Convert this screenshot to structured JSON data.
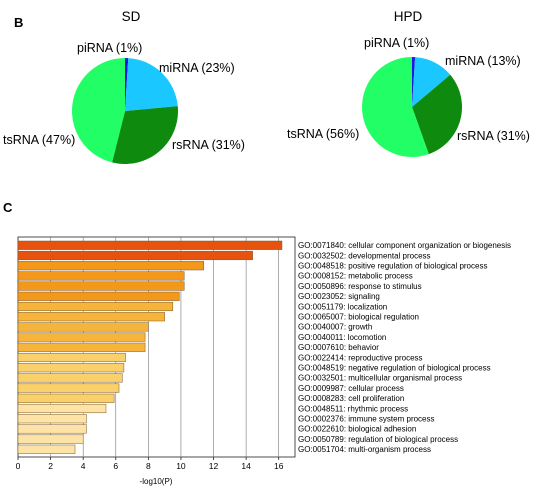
{
  "panel_b_letter": "B",
  "panel_c_letter": "C",
  "colors": {
    "piRNA": "#1a1ae6",
    "miRNA": "#1ac8ff",
    "rsRNA": "#0e8a0e",
    "tsRNA": "#22ff66",
    "bar_palette": [
      "#e8520f",
      "#ef7a1a",
      "#f4981c",
      "#f7b43a",
      "#fad06a",
      "#fde3a6"
    ]
  },
  "chart_data": [
    {
      "type": "pie",
      "title": "SD",
      "slices": [
        {
          "name": "piRNA",
          "label": "piRNA (1%)",
          "value": 1
        },
        {
          "name": "miRNA",
          "label": "miRNA (23%)",
          "value": 23
        },
        {
          "name": "rsRNA",
          "label": "rsRNA (31%)",
          "value": 31
        },
        {
          "name": "tsRNA",
          "label": "tsRNA (47%)",
          "value": 47
        }
      ]
    },
    {
      "type": "pie",
      "title": "HPD",
      "slices": [
        {
          "name": "piRNA",
          "label": "piRNA (1%)",
          "value": 1
        },
        {
          "name": "miRNA",
          "label": "miRNA (13%)",
          "value": 13
        },
        {
          "name": "rsRNA",
          "label": "rsRNA (31%)",
          "value": 31
        },
        {
          "name": "tsRNA",
          "label": "tsRNA (56%)",
          "value": 56
        }
      ]
    },
    {
      "type": "bar",
      "orientation": "horizontal",
      "xlabel": "-log10(P)",
      "xlim": [
        0,
        17
      ],
      "xticks": [
        0,
        2,
        4,
        6,
        8,
        10,
        12,
        14,
        16
      ],
      "grid": true,
      "categories": [
        "GO:0071840: cellular component organization or biogenesis",
        "GO:0032502: developmental process",
        "GO:0048518: positive regulation of biological process",
        "GO:0008152: metabolic process",
        "GO:0050896: response to stimulus",
        "GO:0023052: signaling",
        "GO:0051179: localization",
        "GO:0065007: biological regulation",
        "GO:0040007: growth",
        "GO:0040011: locomotion",
        "GO:0007610: behavior",
        "GO:0022414: reproductive process",
        "GO:0048519: negative regulation of biological process",
        "GO:0032501: multicellular organismal process",
        "GO:0009987: cellular process",
        "GO:0008283: cell proliferation",
        "GO:0048511: rhythmic process",
        "GO:0002376: immune system process",
        "GO:0022610: biological adhesion",
        "GO:0050789: regulation of biological process",
        "GO:0051704: multi-organism process"
      ],
      "values": [
        16.2,
        14.4,
        11.4,
        10.2,
        10.2,
        9.9,
        9.5,
        9.0,
        8.0,
        7.8,
        7.8,
        6.6,
        6.5,
        6.4,
        6.2,
        5.9,
        5.4,
        4.2,
        4.2,
        4.0,
        3.5
      ]
    }
  ]
}
